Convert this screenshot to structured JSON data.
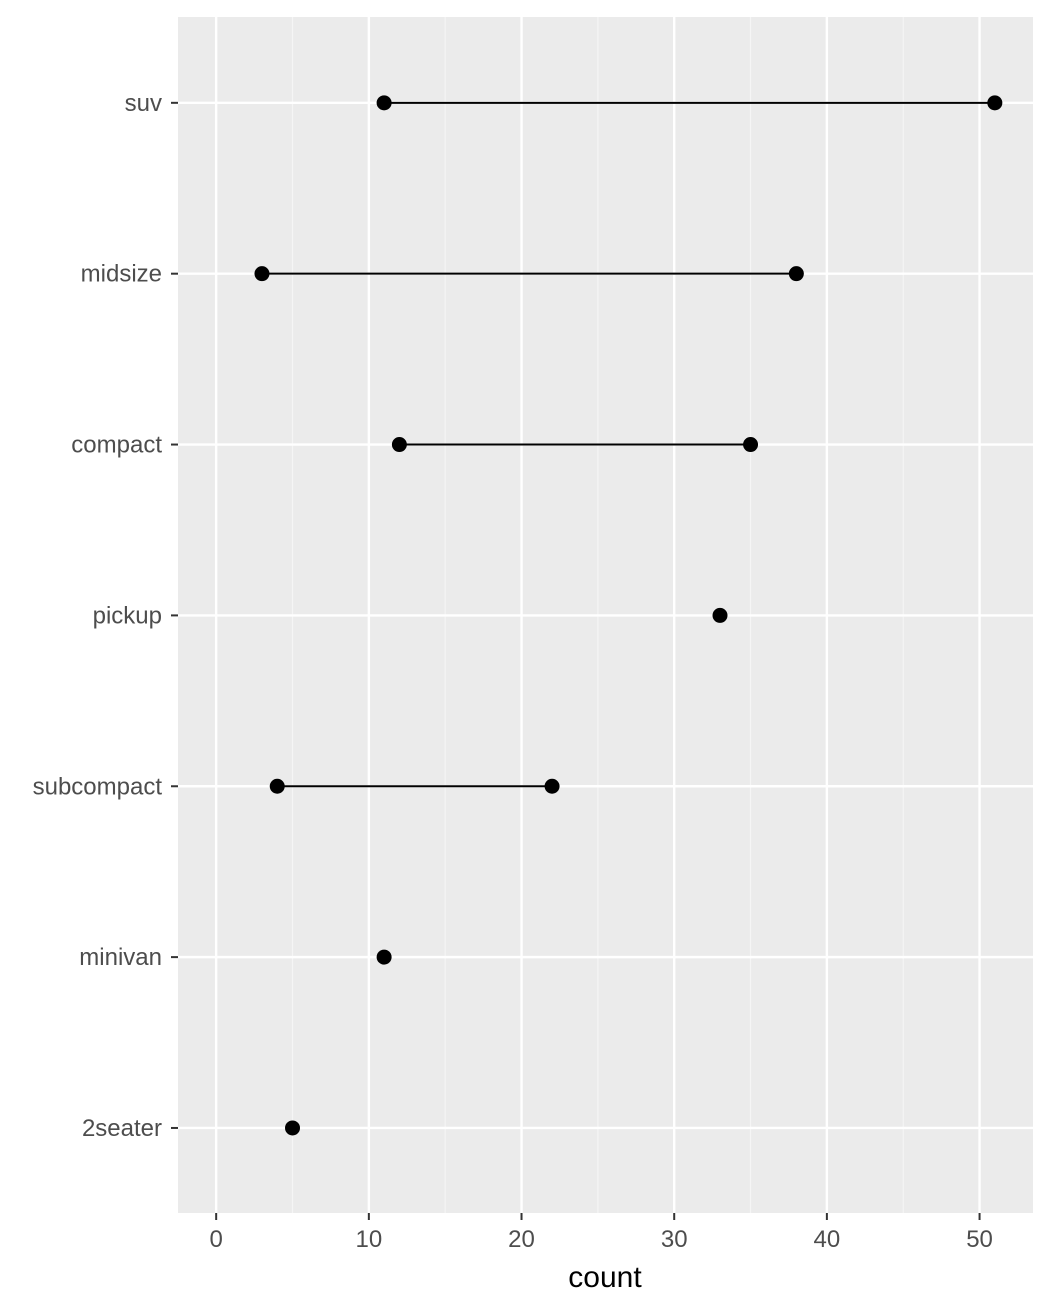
{
  "chart_data": {
    "type": "dumbbell",
    "xlabel": "count",
    "ylabel": "",
    "title": "",
    "xlim": [
      -2.5,
      53.5
    ],
    "x_ticks": [
      0,
      10,
      20,
      30,
      40,
      50
    ],
    "x_tick_labels": [
      "0",
      "10",
      "20",
      "30",
      "40",
      "50"
    ],
    "categories": [
      "2seater",
      "minivan",
      "subcompact",
      "pickup",
      "compact",
      "midsize",
      "suv"
    ],
    "points": [
      {
        "category": "2seater",
        "values": [
          5
        ]
      },
      {
        "category": "minivan",
        "values": [
          11
        ]
      },
      {
        "category": "subcompact",
        "values": [
          4,
          22
        ]
      },
      {
        "category": "pickup",
        "values": [
          33
        ]
      },
      {
        "category": "compact",
        "values": [
          12,
          35
        ]
      },
      {
        "category": "midsize",
        "values": [
          3,
          38
        ]
      },
      {
        "category": "suv",
        "values": [
          11,
          51
        ]
      }
    ],
    "grid": true,
    "colors": {
      "panel": "#ebebeb",
      "grid_major": "#ffffff",
      "grid_minor": "#f5f5f5",
      "point": "#000000",
      "segment": "#000000",
      "tick": "#333333"
    }
  }
}
